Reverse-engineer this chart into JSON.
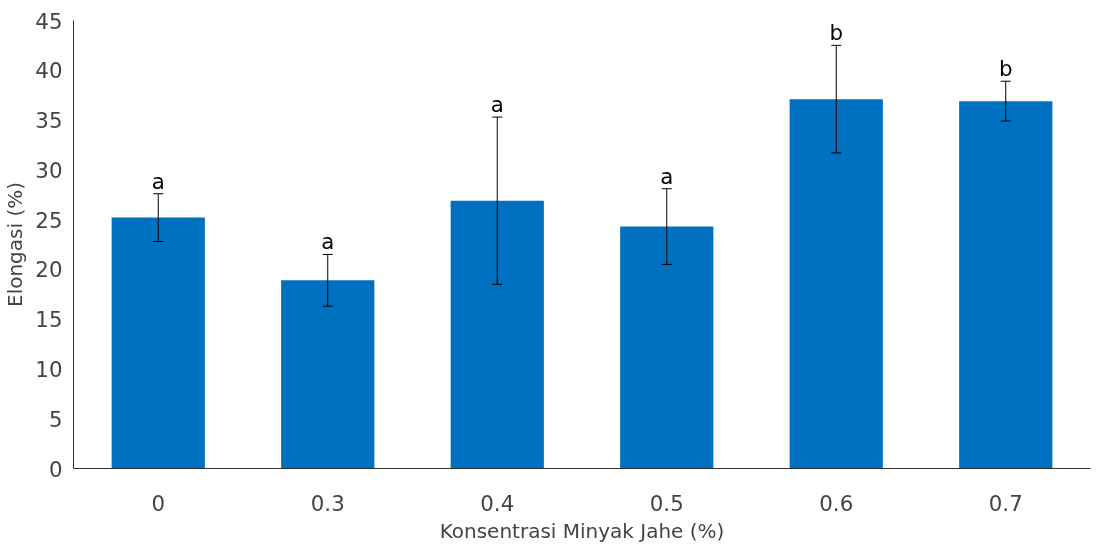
{
  "chart_data": {
    "type": "bar",
    "xlabel": "Konsentrasi Minyak Jahe (%)",
    "ylabel": "Elongasi (%)",
    "categories": [
      "0",
      "0.3",
      "0.4",
      "0.5",
      "0.6",
      "0.7"
    ],
    "values": [
      25.2,
      18.9,
      26.9,
      24.3,
      37.1,
      36.9
    ],
    "errors": [
      2.4,
      2.6,
      8.4,
      3.8,
      5.4,
      2.0
    ],
    "color": "#0070c0",
    "ylim": [
      0,
      45
    ],
    "yticks": [
      0,
      5,
      10,
      15,
      20,
      25,
      30,
      35,
      40,
      45
    ],
    "grid": false,
    "annotations": [
      {
        "text": "a",
        "x": "0",
        "y": 27.6
      },
      {
        "text": "a",
        "x": "0.3",
        "y": 21.5
      },
      {
        "text": "a",
        "x": "0.4",
        "y": 35.3
      },
      {
        "text": "a",
        "x": "0.5",
        "y": 28.1
      },
      {
        "text": "b",
        "x": "0.6",
        "y": 42.5
      },
      {
        "text": "b",
        "x": "0.7",
        "y": 38.9
      }
    ]
  }
}
